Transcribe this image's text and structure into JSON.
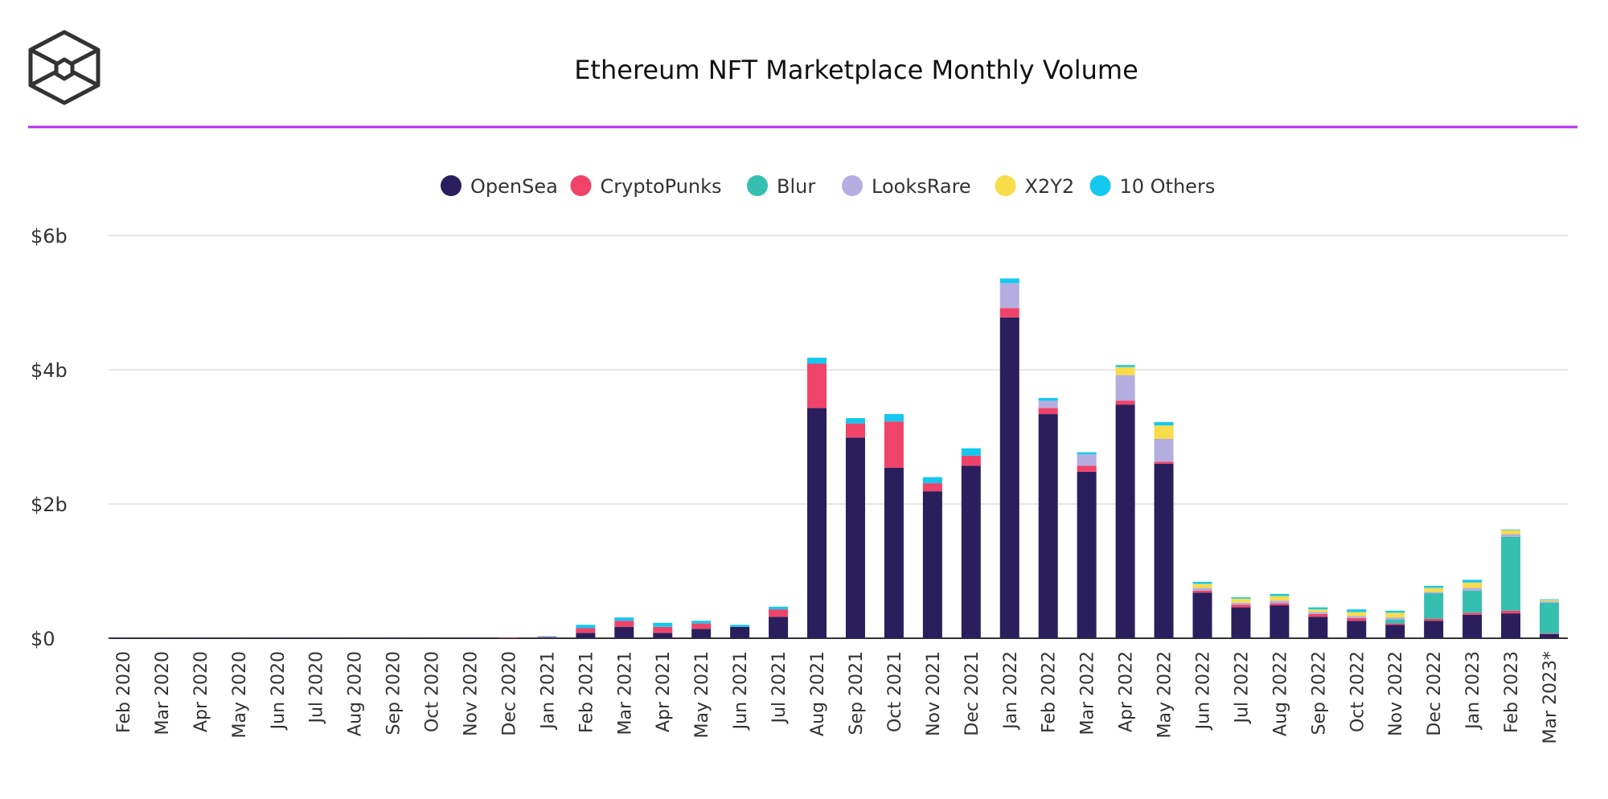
{
  "chart_data": {
    "type": "bar",
    "stacked": true,
    "title": "Ethereum NFT Marketplace Monthly Volume",
    "xlabel": "",
    "ylabel": "",
    "ylim": [
      0,
      6
    ],
    "y_ticks": [
      0,
      2,
      4,
      6
    ],
    "y_tick_labels": [
      "$0",
      "$2b",
      "$4b",
      "$6b"
    ],
    "grid": true,
    "legend_position": "top",
    "categories": [
      "Feb 2020",
      "Mar 2020",
      "Apr 2020",
      "May 2020",
      "Jun 2020",
      "Jul 2020",
      "Aug 2020",
      "Sep 2020",
      "Oct 2020",
      "Nov 2020",
      "Dec 2020",
      "Jan 2021",
      "Feb 2021",
      "Mar 2021",
      "Apr 2021",
      "May 2021",
      "Jun 2021",
      "Jul 2021",
      "Aug 2021",
      "Sep 2021",
      "Oct 2021",
      "Nov 2021",
      "Dec 2021",
      "Jan 2022",
      "Feb 2022",
      "Mar 2022",
      "Apr 2022",
      "May 2022",
      "Jun 2022",
      "Jul 2022",
      "Aug 2022",
      "Sep 2022",
      "Oct 2022",
      "Nov 2022",
      "Dec 2022",
      "Jan 2023",
      "Feb 2023",
      "Mar 2023*"
    ],
    "series": [
      {
        "name": "OpenSea",
        "color": "#2a1f5c",
        "values": [
          0.003,
          0.004,
          0.004,
          0.003,
          0.004,
          0.004,
          0.005,
          0.006,
          0.005,
          0.004,
          0.006,
          0.01,
          0.08,
          0.17,
          0.08,
          0.14,
          0.17,
          0.32,
          3.43,
          2.99,
          2.54,
          2.19,
          2.57,
          4.78,
          3.34,
          2.48,
          3.48,
          2.6,
          0.68,
          0.46,
          0.49,
          0.32,
          0.26,
          0.2,
          0.26,
          0.35,
          0.37,
          0.06
        ]
      },
      {
        "name": "CryptoPunks",
        "color": "#f0436a",
        "values": [
          0,
          0,
          0,
          0,
          0,
          0,
          0,
          0,
          0,
          0,
          0.002,
          0.01,
          0.07,
          0.09,
          0.09,
          0.08,
          0,
          0.11,
          0.66,
          0.21,
          0.69,
          0.12,
          0.15,
          0.14,
          0.09,
          0.09,
          0.06,
          0.03,
          0.03,
          0.04,
          0.03,
          0.04,
          0.04,
          0.02,
          0.03,
          0.03,
          0.04,
          0.01
        ]
      },
      {
        "name": "Blur",
        "color": "#35bfb0",
        "values": [
          0,
          0,
          0,
          0,
          0,
          0,
          0,
          0,
          0,
          0,
          0,
          0,
          0,
          0,
          0,
          0,
          0,
          0,
          0,
          0,
          0,
          0,
          0,
          0,
          0,
          0,
          0,
          0,
          0,
          0,
          0,
          0,
          0,
          0.06,
          0.38,
          0.33,
          1.1,
          0.46
        ]
      },
      {
        "name": "LooksRare",
        "color": "#b4aee0",
        "values": [
          0,
          0,
          0,
          0,
          0,
          0,
          0,
          0,
          0,
          0,
          0,
          0,
          0,
          0,
          0,
          0,
          0,
          0,
          0,
          0,
          0,
          0,
          0,
          0.37,
          0.11,
          0.17,
          0.38,
          0.34,
          0.04,
          0.03,
          0.04,
          0.03,
          0.03,
          0.03,
          0.02,
          0.04,
          0.04,
          0.02
        ]
      },
      {
        "name": "X2Y2",
        "color": "#f9dc4a",
        "values": [
          0,
          0,
          0,
          0,
          0,
          0,
          0,
          0,
          0,
          0,
          0,
          0,
          0,
          0,
          0,
          0,
          0,
          0,
          0,
          0,
          0,
          0,
          0,
          0,
          0,
          0,
          0.12,
          0.2,
          0.06,
          0.06,
          0.07,
          0.04,
          0.06,
          0.07,
          0.06,
          0.08,
          0.06,
          0.02
        ]
      },
      {
        "name": "10 Others",
        "color": "#14c8ef",
        "values": [
          0,
          0,
          0,
          0,
          0,
          0,
          0,
          0,
          0,
          0,
          0,
          0.01,
          0.05,
          0.05,
          0.06,
          0.04,
          0.03,
          0.04,
          0.09,
          0.08,
          0.11,
          0.09,
          0.11,
          0.07,
          0.04,
          0.03,
          0.03,
          0.05,
          0.03,
          0.02,
          0.03,
          0.03,
          0.04,
          0.03,
          0.03,
          0.04,
          0.01,
          0.01
        ]
      }
    ]
  },
  "header": {
    "title": "Ethereum NFT Marketplace Monthly Volume",
    "accent_color": "#b32ef0",
    "logo": "cube-logo"
  }
}
